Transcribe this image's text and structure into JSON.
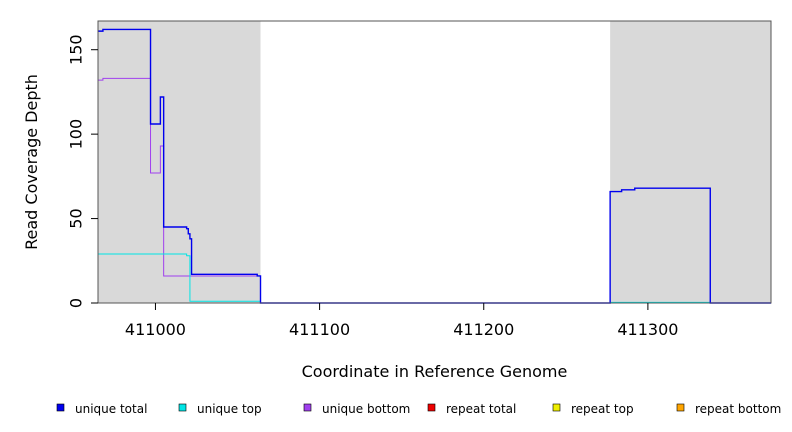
{
  "chart_data": {
    "type": "line",
    "xlabel": "Coordinate in Reference Genome",
    "ylabel": "Read Coverage Depth",
    "xlim": [
      410965,
      411375
    ],
    "ylim": [
      0,
      167
    ],
    "x_ticks": [
      411000,
      411100,
      411200,
      411300
    ],
    "y_ticks": [
      0,
      50,
      100,
      150
    ],
    "grid": false,
    "shaded_regions": [
      [
        410965,
        411064
      ],
      [
        411277,
        411375
      ]
    ],
    "colors": {
      "shaded_region": "#d9d9d9",
      "unique_total": "#0000ee",
      "unique_top": "#00e5e5",
      "unique_bottom": "#a040ee",
      "repeat_total": "#ee0000",
      "repeat_top": "#eeee00",
      "repeat_bottom": "#ffa500"
    },
    "legend_position": "bottom",
    "series": [
      {
        "name": "unique total",
        "key": "unique_total",
        "steps": [
          [
            410965,
            161
          ],
          [
            410968,
            162
          ],
          [
            410997,
            106
          ],
          [
            411003,
            122
          ],
          [
            411005,
            45
          ],
          [
            411019,
            44
          ],
          [
            411020,
            41
          ],
          [
            411021,
            38
          ],
          [
            411022,
            17
          ],
          [
            411062,
            16
          ],
          [
            411064,
            0
          ],
          [
            411277,
            66
          ],
          [
            411284,
            67
          ],
          [
            411292,
            68
          ],
          [
            411338,
            0
          ],
          [
            411375,
            0
          ]
        ]
      },
      {
        "name": "unique top",
        "key": "unique_top",
        "steps": [
          [
            410965,
            29
          ],
          [
            411019,
            28
          ],
          [
            411021,
            1
          ],
          [
            411064,
            0
          ],
          [
            411277,
            0.4
          ],
          [
            411338,
            0
          ],
          [
            411375,
            0
          ]
        ]
      },
      {
        "name": "unique bottom",
        "key": "unique_bottom",
        "steps": [
          [
            410965,
            132
          ],
          [
            410968,
            133
          ],
          [
            410997,
            77
          ],
          [
            411003,
            93
          ],
          [
            411005,
            16
          ],
          [
            411064,
            0
          ],
          [
            411277,
            0.3
          ],
          [
            411338,
            0
          ],
          [
            411375,
            0
          ]
        ]
      },
      {
        "name": "repeat total",
        "key": "repeat_total",
        "steps": [
          [
            410965,
            0
          ],
          [
            411375,
            0
          ]
        ]
      },
      {
        "name": "repeat top",
        "key": "repeat_top",
        "steps": [
          [
            410965,
            0
          ],
          [
            411375,
            0
          ]
        ]
      },
      {
        "name": "repeat bottom",
        "key": "repeat_bottom",
        "steps": [
          [
            410965,
            0
          ],
          [
            411375,
            0
          ]
        ]
      }
    ]
  }
}
